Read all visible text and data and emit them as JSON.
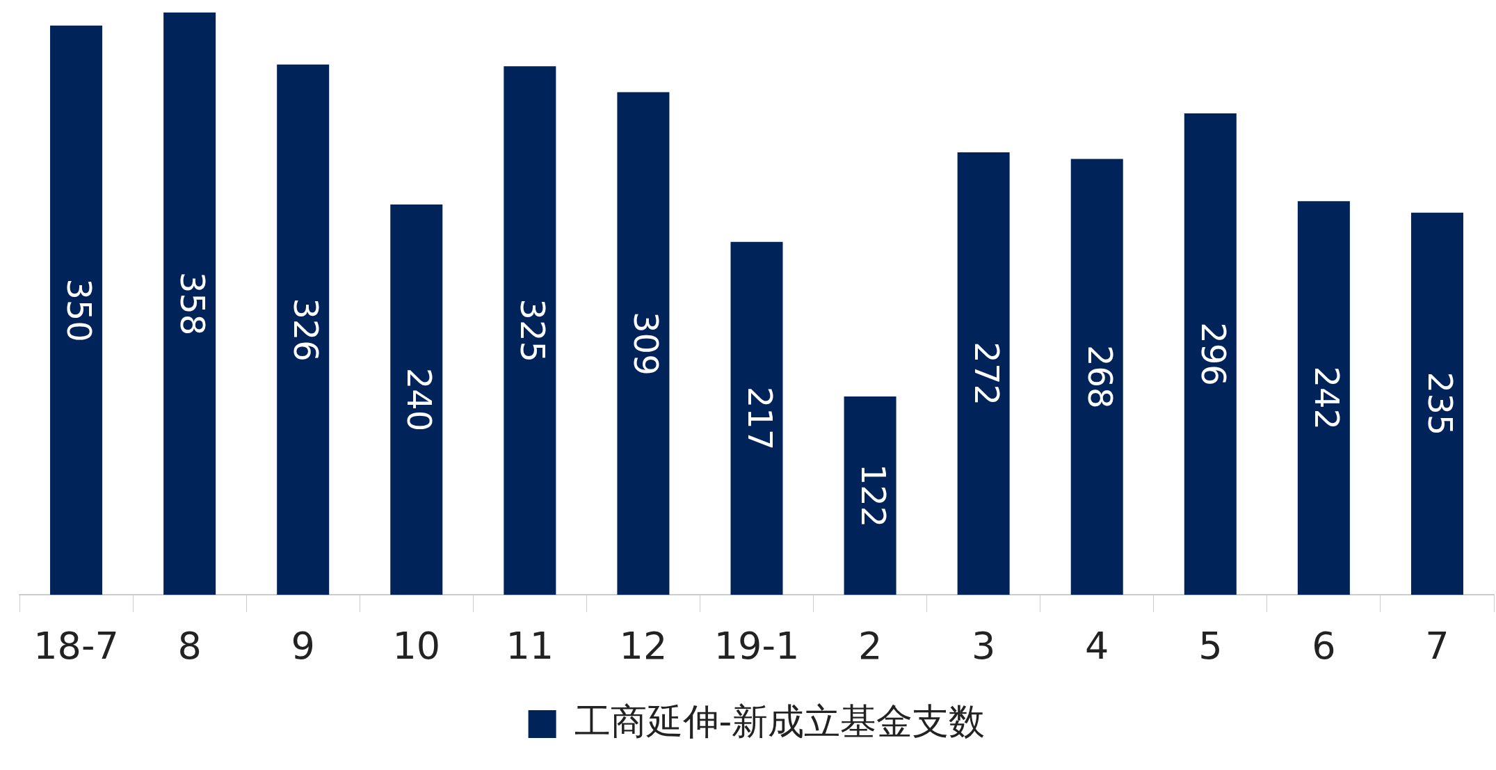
{
  "chart_data": {
    "type": "bar",
    "categories": [
      "18-7",
      "8",
      "9",
      "10",
      "11",
      "12",
      "19-1",
      "2",
      "3",
      "4",
      "5",
      "6",
      "7"
    ],
    "series": [
      {
        "name": "工商延伸-新成立基金支数",
        "color": "#002459",
        "values": [
          350,
          358,
          326,
          240,
          325,
          309,
          217,
          122,
          272,
          268,
          296,
          242,
          235
        ]
      }
    ],
    "data_labels": true,
    "legend": "bottom",
    "grid": false
  }
}
